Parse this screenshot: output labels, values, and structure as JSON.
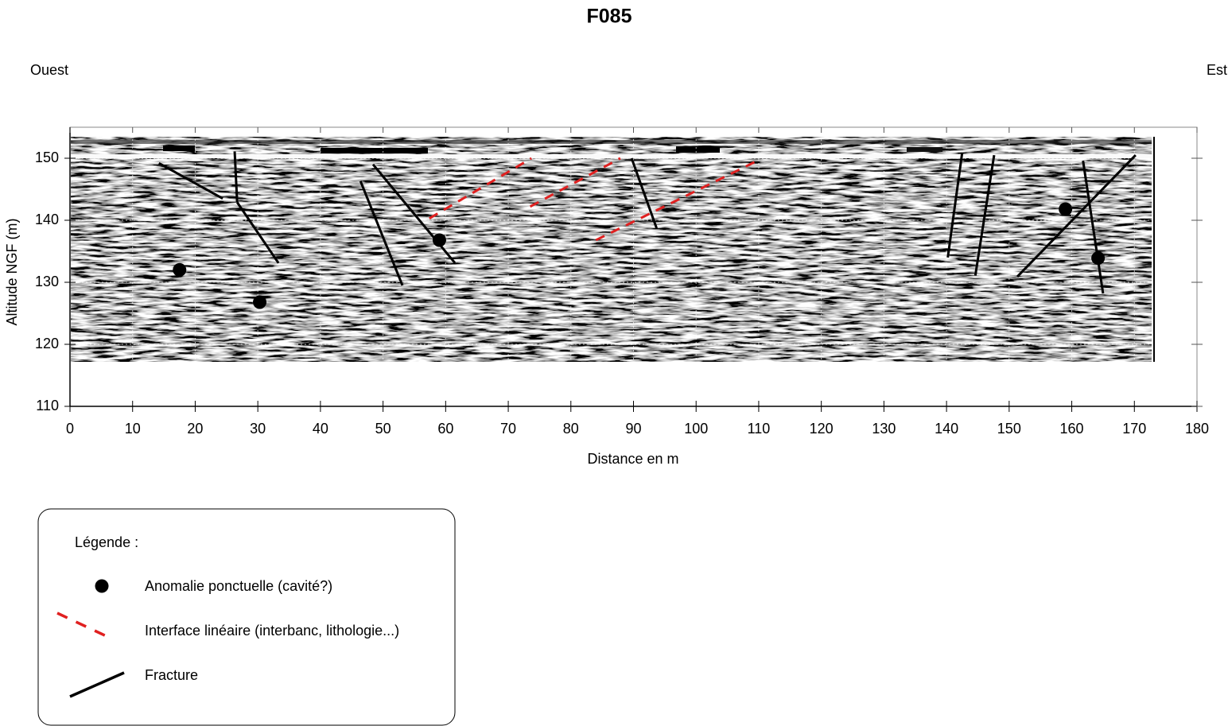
{
  "chart_data": {
    "type": "scatter",
    "title": "F085",
    "left_label": "Ouest",
    "right_label": "Est",
    "x_label": "Distance en m",
    "y_label": "Altitude NGF (m)",
    "xlim": [
      0,
      180
    ],
    "ylim": [
      110,
      155
    ],
    "xticks": [
      0,
      10,
      20,
      30,
      40,
      50,
      60,
      70,
      80,
      90,
      100,
      110,
      120,
      130,
      140,
      150,
      160,
      170,
      180
    ],
    "yticks": [
      110,
      120,
      130,
      140,
      150
    ],
    "grid": true,
    "series": [
      {
        "name": "Anomalie ponctuelle (cavité?)",
        "color": "#000000",
        "kind": "point",
        "x": [
          17.5,
          30.3,
          59,
          159,
          164.2
        ],
        "values": [
          132,
          126.8,
          136.8,
          141.8,
          133.9
        ]
      },
      {
        "name": "Interface linéaire (interbanc, lithologie...)",
        "color": "#e02020",
        "kind": "dashed-segment",
        "segments": [
          {
            "x": [
              57.4,
              73.7
            ],
            "values": [
              140.3,
              150
            ]
          },
          {
            "x": [
              73.5,
              87.9
            ],
            "values": [
              142.2,
              150
            ]
          },
          {
            "x": [
              84,
              110
            ],
            "values": [
              136.8,
              149.7
            ]
          }
        ]
      },
      {
        "name": "Fracture",
        "color": "#000000",
        "kind": "segment",
        "segments": [
          {
            "x": [
              14.2,
              24.4
            ],
            "values": [
              149.2,
              143.5
            ]
          },
          {
            "x": [
              26.3,
              26.7
            ],
            "values": [
              151.1,
              142.9
            ]
          },
          {
            "x": [
              26.7,
              33.3
            ],
            "values": [
              142.9,
              133.1
            ]
          },
          {
            "x": [
              46.4,
              53.1
            ],
            "values": [
              146.3,
              129.5
            ]
          },
          {
            "x": [
              48.4,
              61.5
            ],
            "values": [
              149,
              133.1
            ]
          },
          {
            "x": [
              89.7,
              93.7
            ],
            "values": [
              150,
              138.7
            ]
          },
          {
            "x": [
              140.2,
              142.5
            ],
            "values": [
              134,
              150.9
            ]
          },
          {
            "x": [
              144.6,
              147.6
            ],
            "values": [
              131.1,
              150.5
            ]
          },
          {
            "x": [
              151.3,
              170.2
            ],
            "values": [
              130.9,
              150.5
            ]
          },
          {
            "x": [
              161.8,
              165
            ],
            "values": [
              149.6,
              128.2
            ]
          }
        ]
      }
    ],
    "legend": {
      "title": "Légende :",
      "position": "bottom-left"
    }
  }
}
